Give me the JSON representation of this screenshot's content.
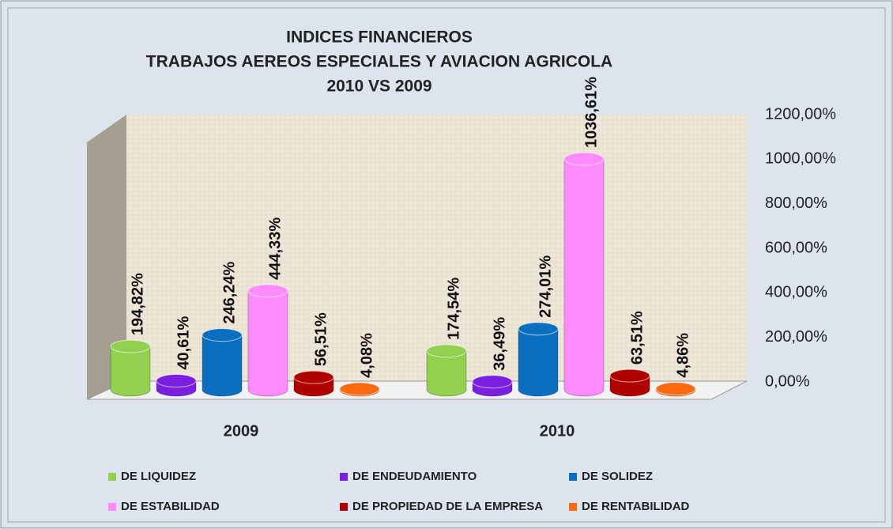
{
  "chart_data": {
    "type": "bar3d",
    "title": [
      "INDICES FINANCIEROS",
      "TRABAJOS AEREOS ESPECIALES Y AVIACION AGRICOLA",
      "2010  VS 2009"
    ],
    "categories": [
      "2009",
      "2010"
    ],
    "series": [
      {
        "name": "DE LIQUIDEZ",
        "color": "#92d050",
        "values": [
          194.82,
          174.54
        ],
        "value_labels": [
          "194,82%",
          "174,54%"
        ]
      },
      {
        "name": "DE ENDEUDAMIENTO",
        "color": "#7a1fe0",
        "values": [
          40.61,
          36.49
        ],
        "value_labels": [
          "40,61%",
          "36,49%"
        ]
      },
      {
        "name": "DE SOLIDEZ",
        "color": "#0b6fc0",
        "values": [
          246.24,
          274.01
        ],
        "value_labels": [
          "246,24%",
          "274,01%"
        ]
      },
      {
        "name": "DE ESTABILIDAD",
        "color": "#ff8cff",
        "values": [
          444.33,
          1036.61
        ],
        "value_labels": [
          "444,33%",
          "1036,61%"
        ]
      },
      {
        "name": "DE PROPIEDAD DE LA EMPRESA",
        "color": "#b00000",
        "values": [
          56.51,
          63.51
        ],
        "value_labels": [
          "56,51%",
          "63,51%"
        ]
      },
      {
        "name": "DE RENTABILIDAD",
        "color": "#ff6a10",
        "values": [
          4.08,
          4.86
        ],
        "value_labels": [
          "4,08%",
          "4,86%"
        ]
      }
    ],
    "ylim": [
      0,
      1200
    ],
    "yticks": [
      {
        "value": 0,
        "label": "0,00%"
      },
      {
        "value": 200,
        "label": "200,00%"
      },
      {
        "value": 400,
        "label": "400,00%"
      },
      {
        "value": 600,
        "label": "600,00%"
      },
      {
        "value": 800,
        "label": "800,00%"
      },
      {
        "value": 1000,
        "label": "1000,00%"
      },
      {
        "value": 1200,
        "label": "1200,00%"
      }
    ],
    "grid": false
  }
}
